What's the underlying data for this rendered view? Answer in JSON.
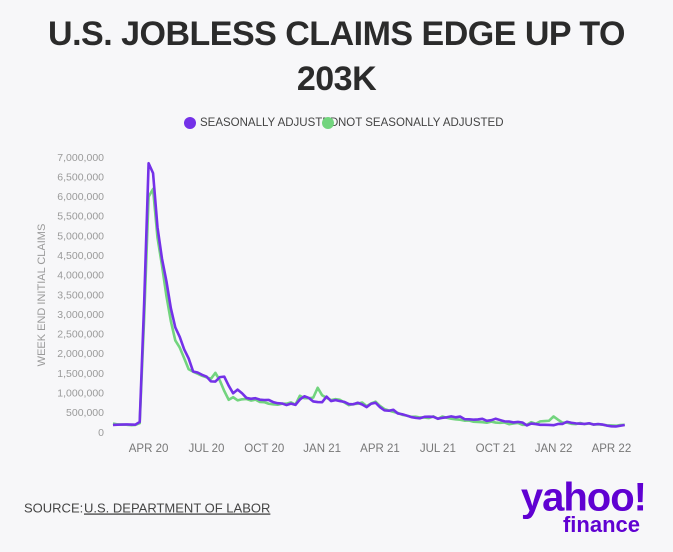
{
  "chart_data": {
    "type": "line",
    "title": "U.S. JOBLESS CLAIMS EDGE UP TO 203K",
    "y_label": "WEEK END INITIAL CLAIMS",
    "source_prefix": "SOURCE:",
    "source": "U.S. DEPARTMENT OF LABOR",
    "logo": "yahoo!",
    "logo_sub": "finance",
    "categories": [
      null,
      null,
      null,
      null,
      null,
      null,
      null,
      null,
      "APR 20",
      null,
      null,
      null,
      null,
      null,
      null,
      null,
      null,
      null,
      null,
      null,
      null,
      "JUL 20",
      null,
      null,
      null,
      null,
      null,
      null,
      null,
      null,
      null,
      null,
      null,
      null,
      "OCT 20",
      null,
      null,
      null,
      null,
      null,
      null,
      null,
      null,
      null,
      null,
      null,
      null,
      "JAN 21",
      null,
      null,
      null,
      null,
      null,
      null,
      null,
      null,
      null,
      null,
      null,
      null,
      "APR 21",
      null,
      null,
      null,
      null,
      null,
      null,
      null,
      null,
      null,
      null,
      null,
      null,
      "JUL 21",
      null,
      null,
      null,
      null,
      null,
      null,
      null,
      null,
      null,
      null,
      null,
      null,
      "OCT 21",
      null,
      null,
      null,
      null,
      null,
      null,
      null,
      null,
      null,
      null,
      null,
      null,
      "JAN 22",
      null,
      null,
      null,
      null,
      null,
      null,
      null,
      null,
      null,
      null,
      null,
      null,
      "APR 22",
      null,
      null,
      null
    ],
    "series": [
      {
        "name": "SEASONALLY ADJUSTED",
        "color": "#7431e8",
        "values": [
          205000,
          210000,
          215000,
          219000,
          215000,
          211000,
          282000,
          3307000,
          6867000,
          6615000,
          5237000,
          4442000,
          3867000,
          3176000,
          2687000,
          2446000,
          2126000,
          1897000,
          1566000,
          1540000,
          1482000,
          1437000,
          1314000,
          1310000,
          1422000,
          1435000,
          1204000,
          1011000,
          1104000,
          1011000,
          893000,
          870000,
          886000,
          849000,
          840000,
          842000,
          787000,
          758000,
          751000,
          711000,
          748000,
          716000,
          853000,
          935000,
          892000,
          803000,
          787000,
          784000,
          926000,
          812000,
          836000,
          812000,
          793000,
          736000,
          731000,
          770000,
          725000,
          658000,
          745000,
          770000,
          658000,
          576000,
          566000,
          590000,
          498000,
          478000,
          444000,
          406000,
          385000,
          375000,
          412000,
          415000,
          411000,
          364000,
          386000,
          400000,
          424000,
          400000,
          419000,
          353000,
          348000,
          340000,
          345000,
          362000,
          310000,
          326000,
          364000,
          329000,
          296000,
          293000,
          269000,
          283000,
          267000,
          194000,
          240000,
          227000,
          209000,
          208000,
          205000,
          198000,
          230000,
          231000,
          286000,
          261000,
          245000,
          238000,
          232000,
          248000,
          214000,
          229000,
          215000,
          187000,
          171000,
          166000,
          185000,
          203000
        ]
      },
      {
        "name": "NOT SEASONALLY ADJUSTED",
        "color": "#72d47e",
        "values": [
          240000,
          220000,
          215000,
          210000,
          200000,
          205000,
          251000,
          2920000,
          6015000,
          6211000,
          4971000,
          4268000,
          3490000,
          2847000,
          2356000,
          2174000,
          1904000,
          1622000,
          1562000,
          1508000,
          1456000,
          1417000,
          1380000,
          1531000,
          1340000,
          1070000,
          845000,
          910000,
          831000,
          858000,
          866000,
          825000,
          849000,
          790000,
          785000,
          745000,
          730000,
          720000,
          745000,
          745000,
          780000,
          720000,
          948000,
          886000,
          885000,
          901000,
          1151000,
          960000,
          894000,
          837000,
          863000,
          844000,
          776000,
          709000,
          736000,
          746000,
          775000,
          684000,
          751000,
          797000,
          690000,
          609000,
          574000,
          538000,
          511000,
          463000,
          443000,
          414000,
          415000,
          395000,
          392000,
          381000,
          424000,
          360000,
          420000,
          388000,
          364000,
          349000,
          339000,
          314000,
          318000,
          288000,
          281000,
          276000,
          262000,
          291000,
          266000,
          258000,
          267000,
          225000,
          242000,
          256000,
          208000,
          209000,
          276000,
          235000,
          296000,
          305000,
          312000,
          421000,
          338000,
          262000,
          263000,
          235000,
          227000,
          254000,
          226000,
          244000,
          218000,
          220000,
          211000,
          196000,
          192000,
          185000,
          202000,
          210000
        ]
      }
    ],
    "ylim": [
      0,
      7000000
    ],
    "yticks": [
      0,
      {
        "value": 500000,
        "label": "500,000"
      },
      {
        "value": 1000000,
        "label": "1,000,000"
      },
      {
        "value": 1500000,
        "label": "1,500,000"
      },
      {
        "value": 2000000,
        "label": "2,000,000"
      },
      {
        "value": 2500000,
        "label": "2,500,000"
      },
      {
        "value": 3000000,
        "label": "3,000,000"
      },
      {
        "value": 3500000,
        "label": "3,500,000"
      },
      {
        "value": 4000000,
        "label": "4,000,000"
      },
      {
        "value": 4500000,
        "label": "4,500,000"
      },
      {
        "value": 5000000,
        "label": "5,000,000"
      },
      {
        "value": 5500000,
        "label": "5,500,000"
      },
      {
        "value": 6000000,
        "label": "6,000,000"
      },
      {
        "value": 6500000,
        "label": "6,500,000"
      },
      {
        "value": 7000000,
        "label": "7,000,000"
      }
    ],
    "grid": false,
    "legend": "top"
  }
}
